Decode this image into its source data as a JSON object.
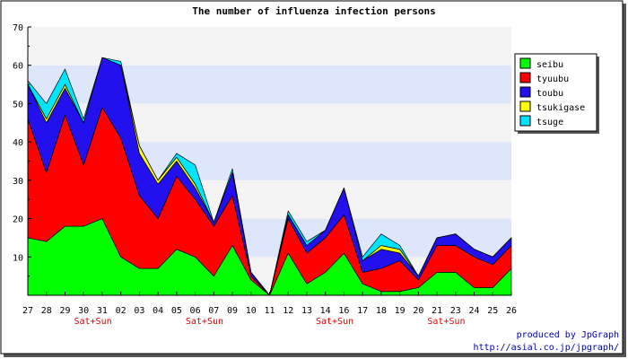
{
  "chart_data": {
    "type": "area",
    "stacked": true,
    "title": "The number of influenza infection persons",
    "xlabel": "",
    "ylabel": "",
    "ylim": [
      0,
      70
    ],
    "yticks": [
      10,
      20,
      30,
      40,
      50,
      60,
      70
    ],
    "categories": [
      "27",
      "28",
      "29",
      "30",
      "31",
      "02",
      "03",
      "04",
      "05",
      "06",
      "07",
      "09",
      "10",
      "11",
      "12",
      "13",
      "14",
      "16",
      "17",
      "18",
      "19",
      "20",
      "21",
      "23",
      "24",
      "25",
      "26"
    ],
    "weekend_markers": [
      {
        "category": "30",
        "label": "Sat+Sun"
      },
      {
        "category": "06",
        "label": "Sat+Sun"
      },
      {
        "category": "14",
        "label": "Sat+Sun"
      },
      {
        "category": "21",
        "label": "Sat+Sun"
      }
    ],
    "legend_position": "right",
    "series": [
      {
        "name": "seibu",
        "color": "#00ff00",
        "values": [
          15,
          14,
          18,
          18,
          20,
          10,
          7,
          7,
          12,
          10,
          5,
          13,
          4,
          0,
          11,
          3,
          6,
          11,
          3,
          1,
          1,
          2,
          6,
          6,
          2,
          2,
          7
        ]
      },
      {
        "name": "tyuubu",
        "color": "#ff0000",
        "values": [
          31,
          18,
          29,
          16,
          29,
          31,
          19,
          13,
          19,
          15,
          13,
          13,
          1,
          0,
          9,
          8,
          9,
          10,
          3,
          6,
          8,
          2,
          7,
          7,
          8,
          6,
          6
        ]
      },
      {
        "name": "toubu",
        "color": "#2211ee",
        "values": [
          9,
          13,
          7,
          11,
          13,
          19,
          11,
          9,
          4,
          3,
          1,
          6,
          1,
          0,
          1,
          2,
          2,
          7,
          3,
          5,
          2,
          1,
          2,
          3,
          2,
          2,
          2
        ]
      },
      {
        "name": "tsukigase",
        "color": "#ffff00",
        "values": [
          0,
          1,
          1,
          0,
          0,
          0,
          2,
          1,
          1,
          1,
          0,
          0,
          0,
          0,
          0,
          0,
          0,
          0,
          0,
          1,
          1,
          0,
          0,
          0,
          0,
          0,
          0
        ]
      },
      {
        "name": "tsuge",
        "color": "#00e5ff",
        "values": [
          1,
          4,
          4,
          1,
          0,
          1,
          0,
          0,
          1,
          5,
          0,
          1,
          0,
          0,
          1,
          1,
          0,
          0,
          1,
          3,
          1,
          0,
          0,
          0,
          0,
          0,
          0
        ]
      }
    ],
    "footer_lines": [
      "produced by JpGraph",
      "http://asial.co.jp/jpgraph/"
    ]
  }
}
